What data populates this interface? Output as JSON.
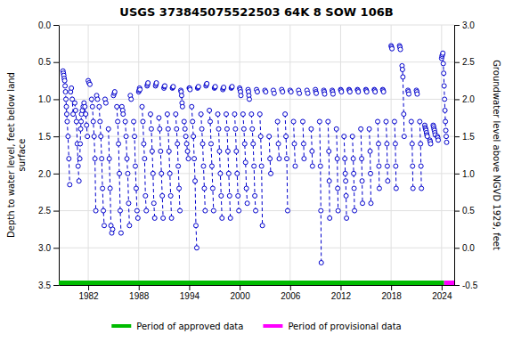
{
  "chart_data": {
    "type": "line",
    "title": "USGS 373845075522503 64K  8 SOW 106B",
    "ylabel": "Depth to water level, feet below land\nsurface",
    "y2label": "Groundwater level above NGVD 1929, feet",
    "xlim": [
      1978.5,
      2025.5
    ],
    "xticks": [
      1982,
      1988,
      1994,
      2000,
      2006,
      2012,
      2018,
      2024
    ],
    "ylim": [
      3.5,
      0.0
    ],
    "yticks": [
      {
        "value": 0.0,
        "label": "0.0"
      },
      0.5,
      {
        "value": 1.0,
        "label": "1.0"
      },
      1.5,
      {
        "value": 2.0,
        "label": "2.0"
      },
      2.5,
      {
        "value": 3.0,
        "label": "3.0"
      },
      3.5
    ],
    "y2lim": [
      -0.5,
      3.0
    ],
    "y2ticks": [
      -0.5,
      {
        "value": 0.0,
        "label": "0.0"
      },
      0.5,
      {
        "value": 1.0,
        "label": "1.0"
      },
      1.5,
      {
        "value": 2.0,
        "label": "2.0"
      },
      2.5,
      {
        "value": 3.0,
        "label": "3.0"
      }
    ],
    "grid": true,
    "legend": "bottom",
    "periods": [
      {
        "name": "Period of approved data",
        "color": "#00BB00",
        "x": [
          1978.5,
          2024.3
        ]
      },
      {
        "name": "Period of provisional data",
        "color": "#FF00FF",
        "x": [
          2024.3,
          2025.5
        ]
      }
    ],
    "x": [
      1979.0,
      1979.05,
      1979.1,
      1979.15,
      1979.2,
      1979.25,
      1979.3,
      1979.35,
      1979.4,
      1979.45,
      1979.5,
      1979.6,
      1979.7,
      1979.8,
      null,
      1979.9,
      1980.0,
      1980.1,
      1980.2,
      null,
      1980.4,
      1980.5,
      1980.6,
      1980.7,
      1980.8,
      1980.9,
      null,
      1981.0,
      1981.05,
      1981.1,
      1981.15,
      1981.2,
      1981.3,
      1981.4,
      1981.5,
      1981.6,
      1981.7,
      1981.8,
      1981.9,
      null,
      1982.0,
      1982.1,
      1982.2,
      null,
      1982.4,
      1982.5,
      1982.6,
      1982.7,
      1982.8,
      1982.9,
      null,
      1983.0,
      1983.1,
      null,
      1983.3,
      1983.4,
      1983.5,
      1983.6,
      1983.7,
      1983.8,
      1983.9,
      null,
      1984.0,
      1984.1,
      null,
      1984.4,
      1984.5,
      1984.6,
      1984.7,
      1984.8,
      1984.9,
      null,
      1985.0,
      1985.1,
      1985.15,
      null,
      1985.4,
      1985.5,
      1985.6,
      1985.7,
      1985.8,
      1985.9,
      null,
      1986.0,
      1986.1,
      1986.15,
      null,
      1986.4,
      1986.5,
      1986.6,
      1986.7,
      1986.8,
      1986.9,
      null,
      1987.0,
      1987.1,
      null,
      1987.4,
      1987.5,
      1987.6,
      1987.7,
      1987.8,
      1987.9,
      null,
      1988.0,
      1988.05,
      1988.1,
      1988.15,
      null,
      1988.4,
      1988.5,
      1988.6,
      1988.7,
      1988.8,
      1988.9,
      null,
      1989.0,
      1989.05,
      1989.1,
      null,
      1989.4,
      1989.5,
      1989.6,
      1989.7,
      1989.8,
      1989.9,
      null,
      1990.0,
      1990.05,
      1990.1,
      null,
      1990.4,
      1990.5,
      1990.6,
      1990.7,
      1990.8,
      1990.9,
      null,
      1991.0,
      1991.05,
      1991.1,
      null,
      1991.4,
      1991.5,
      1991.6,
      1991.7,
      1991.8,
      1991.9,
      null,
      1992.0,
      1992.05,
      1992.1,
      null,
      1992.4,
      1992.5,
      1992.6,
      1992.7,
      1992.8,
      1992.9,
      null,
      1993.0,
      1993.05,
      1993.1,
      1993.15,
      1993.2,
      null,
      1993.4,
      1993.5,
      1993.6,
      1993.7,
      1993.8,
      1993.9,
      null,
      1994.0,
      1994.05,
      1994.1,
      null,
      1994.3,
      1994.4,
      1994.5,
      1994.6,
      1994.7,
      1994.8,
      1994.9,
      null,
      1995.0,
      1995.05,
      1995.1,
      null,
      1995.4,
      1995.5,
      1995.6,
      1995.7,
      1995.8,
      1995.9,
      null,
      1996.0,
      1996.05,
      1996.1,
      null,
      1996.4,
      1996.5,
      1996.6,
      1996.7,
      1996.8,
      1996.9,
      null,
      1997.0,
      1997.05,
      1997.1,
      null,
      1997.4,
      1997.5,
      1997.6,
      1997.7,
      1997.8,
      1997.9,
      null,
      1998.0,
      1998.05,
      1998.1,
      null,
      1998.4,
      1998.5,
      1998.6,
      1998.7,
      1998.8,
      1998.9,
      null,
      1999.0,
      1999.05,
      1999.1,
      null,
      1999.4,
      1999.5,
      1999.6,
      1999.7,
      1999.8,
      1999.9,
      null,
      2000.0,
      2000.05,
      2000.1,
      2000.15,
      null,
      2000.4,
      2000.5,
      2000.6,
      2000.7,
      2000.8,
      2000.9,
      null,
      2001.0,
      2001.05,
      2001.1,
      2001.15,
      null,
      2001.4,
      2001.5,
      2001.6,
      2001.7,
      2001.8,
      2001.9,
      null,
      2002.0,
      2002.1,
      null,
      2002.4,
      2002.5,
      2002.6,
      2002.7,
      null,
      2003.0,
      2003.1,
      null,
      2003.5,
      2003.6,
      2003.7,
      null,
      2004.0,
      2004.1,
      null,
      2004.5,
      2004.6,
      2004.7,
      null,
      2005.0,
      2005.1,
      null,
      2005.4,
      2005.5,
      2005.6,
      2005.7,
      null,
      2006.0,
      2006.1,
      null,
      2006.4,
      2006.5,
      2006.6,
      null,
      2007.0,
      2007.1,
      null,
      2007.5,
      2007.6,
      2007.65,
      null,
      2008.0,
      2008.1,
      null,
      2008.5,
      2008.6,
      2008.65,
      null,
      2009.0,
      2009.05,
      2009.1,
      null,
      2009.5,
      2009.6,
      2009.65,
      2009.7,
      null,
      2010.0,
      2010.05,
      2010.1,
      null,
      2010.5,
      2010.6,
      2010.65,
      2010.7,
      null,
      2011.0,
      2011.05,
      2011.1,
      null,
      2011.5,
      2011.6,
      2011.65,
      2011.7,
      null,
      2012.0,
      2012.05,
      2012.1,
      null,
      2012.4,
      2012.5,
      2012.55,
      2012.6,
      2012.65,
      2012.7,
      null,
      2013.0,
      2013.05,
      2013.1,
      null,
      2013.4,
      2013.5,
      2013.55,
      2013.6,
      2013.65,
      null,
      2014.0,
      2014.05,
      2014.1,
      null,
      2014.4,
      2014.5,
      2014.55,
      2014.6,
      null,
      2015.0,
      2015.05,
      2015.1,
      null,
      2015.4,
      2015.5,
      2015.55,
      2015.6,
      null,
      2016.0,
      2016.05,
      2016.1,
      null,
      2016.4,
      2016.5,
      2016.55,
      2016.6,
      null,
      2017.0,
      2017.05,
      2017.1,
      null,
      2017.4,
      2017.5,
      2017.55,
      2017.6,
      null,
      2018.0,
      2018.05,
      2018.1,
      null,
      2018.4,
      2018.5,
      2018.55,
      2018.6,
      null,
      2019.0,
      2019.05,
      2019.1,
      null,
      2019.3,
      2019.35,
      2019.4,
      2019.5,
      2019.55,
      null,
      2020.0,
      2020.05,
      2020.1,
      null,
      2020.4,
      2020.5,
      2020.55,
      2020.6,
      null,
      2021.0,
      2021.05,
      2021.1,
      null,
      2021.4,
      2021.5,
      2021.55,
      2021.6,
      null,
      2022.0,
      2022.05,
      2022.1,
      2022.15,
      2022.2,
      2022.25,
      2022.3,
      null,
      2022.6,
      2022.65,
      2022.7,
      null,
      2023.0,
      2023.05,
      2023.1,
      2023.15,
      2023.2,
      2023.25,
      null,
      2023.5,
      2023.55,
      2023.6,
      null,
      2024.0,
      2024.05,
      2024.1,
      2024.15,
      2024.2,
      2024.25,
      2024.3,
      2024.35,
      2024.4,
      2024.45,
      2024.5,
      2024.55,
      2024.6
    ],
    "series": [
      {
        "color": "#0000CC",
        "line_style": "dashed",
        "marker": "circle",
        "values": [
          0.62,
          0.65,
          0.68,
          0.72,
          0.75,
          0.82,
          0.9,
          1.0,
          1.1,
          1.2,
          1.3,
          1.5,
          1.8,
          2.15,
          null,
          0.9,
          0.85,
          1.0,
          1.2,
          null,
          1.05,
          1.15,
          1.3,
          1.6,
          1.9,
          2.1,
          null,
          1.8,
          1.6,
          1.4,
          1.3,
          1.2,
          1.15,
          1.1,
          1.05,
          1.1,
          1.2,
          1.35,
          1.5,
          null,
          0.75,
          0.78,
          0.8,
          null,
          1.0,
          1.1,
          1.3,
          1.5,
          1.8,
          2.5,
          null,
          0.95,
          1.0,
          null,
          1.1,
          1.3,
          1.5,
          1.8,
          2.2,
          2.5,
          2.7,
          null,
          1.0,
          1.05,
          null,
          1.4,
          1.8,
          2.2,
          2.7,
          2.8,
          2.75,
          null,
          0.95,
          0.92,
          0.9,
          null,
          1.1,
          1.3,
          1.6,
          2.0,
          2.5,
          2.8,
          null,
          1.1,
          1.15,
          1.2,
          null,
          1.3,
          1.5,
          1.8,
          2.0,
          2.4,
          2.7,
          null,
          0.95,
          1.0,
          null,
          1.3,
          1.5,
          1.9,
          2.2,
          2.5,
          2.6,
          null,
          0.9,
          0.88,
          0.85,
          0.87,
          null,
          1.1,
          1.3,
          1.6,
          1.8,
          2.3,
          2.5,
          null,
          0.82,
          0.8,
          0.78,
          null,
          1.2,
          1.4,
          1.7,
          2.0,
          2.4,
          2.6,
          null,
          0.82,
          0.8,
          0.78,
          null,
          1.25,
          1.4,
          1.7,
          2.0,
          2.3,
          2.6,
          null,
          0.85,
          0.83,
          0.82,
          null,
          1.2,
          1.4,
          1.7,
          2.0,
          2.3,
          2.6,
          null,
          0.85,
          0.84,
          0.83,
          null,
          1.2,
          1.4,
          1.6,
          1.9,
          2.2,
          2.5,
          null,
          0.88,
          0.9,
          0.95,
          1.05,
          1.1,
          null,
          1.3,
          1.4,
          1.5,
          1.6,
          1.7,
          1.8,
          null,
          0.85,
          0.85,
          0.87,
          null,
          1.1,
          1.3,
          1.5,
          1.8,
          2.1,
          2.7,
          3.0,
          null,
          0.85,
          0.84,
          0.83,
          null,
          1.2,
          1.4,
          1.6,
          1.9,
          2.2,
          2.5,
          null,
          0.82,
          0.8,
          0.79,
          null,
          1.15,
          1.3,
          1.6,
          1.9,
          2.2,
          2.5,
          null,
          0.85,
          0.84,
          0.83,
          null,
          1.2,
          1.4,
          1.7,
          2.0,
          2.3,
          2.6,
          null,
          0.87,
          0.85,
          0.84,
          null,
          1.2,
          1.4,
          1.7,
          2.0,
          2.3,
          2.6,
          null,
          0.85,
          0.84,
          0.83,
          null,
          1.2,
          1.4,
          1.7,
          2.0,
          2.3,
          2.5,
          null,
          0.85,
          0.87,
          0.9,
          0.95,
          null,
          1.2,
          1.4,
          1.6,
          1.85,
          2.2,
          2.4,
          null,
          0.87,
          0.9,
          0.95,
          1.0,
          null,
          1.2,
          1.4,
          1.6,
          1.9,
          2.3,
          2.5,
          null,
          0.87,
          0.9,
          null,
          1.2,
          1.5,
          1.9,
          2.7,
          null,
          0.88,
          0.9,
          null,
          1.5,
          1.8,
          2.0,
          null,
          0.88,
          0.92,
          null,
          1.3,
          1.6,
          1.8,
          null,
          0.87,
          0.9,
          null,
          1.2,
          1.5,
          1.8,
          2.5,
          null,
          0.88,
          0.9,
          null,
          1.3,
          1.6,
          1.9,
          null,
          0.88,
          0.92,
          null,
          1.3,
          1.6,
          1.8,
          null,
          0.88,
          0.92,
          null,
          1.4,
          1.7,
          1.9,
          null,
          0.87,
          0.9,
          0.92,
          null,
          1.3,
          1.9,
          2.5,
          3.2,
          null,
          0.88,
          0.9,
          0.93,
          null,
          1.3,
          1.7,
          2.1,
          2.6,
          null,
          0.88,
          0.9,
          0.93,
          null,
          1.4,
          1.8,
          2.2,
          2.5,
          null,
          0.87,
          0.88,
          0.9,
          null,
          1.5,
          1.8,
          2.0,
          2.1,
          2.3,
          2.6,
          null,
          0.87,
          0.88,
          0.9,
          null,
          1.5,
          1.8,
          2.0,
          2.2,
          2.5,
          null,
          0.87,
          0.88,
          0.9,
          null,
          1.4,
          1.8,
          2.1,
          2.4,
          null,
          0.87,
          0.88,
          0.9,
          null,
          1.4,
          1.7,
          2.0,
          2.4,
          null,
          0.87,
          0.88,
          0.9,
          null,
          1.3,
          1.6,
          1.9,
          2.2,
          null,
          0.87,
          0.88,
          0.9,
          null,
          1.3,
          1.6,
          1.9,
          2.1,
          null,
          0.28,
          0.3,
          0.32,
          null,
          1.3,
          1.6,
          1.9,
          2.2,
          null,
          0.28,
          0.3,
          0.33,
          null,
          0.55,
          0.6,
          0.7,
          1.2,
          1.5,
          null,
          0.88,
          0.9,
          0.93,
          null,
          1.3,
          1.6,
          1.9,
          2.2,
          null,
          0.88,
          0.9,
          0.93,
          null,
          1.3,
          1.6,
          1.9,
          2.2,
          null,
          1.35,
          1.38,
          1.4,
          1.42,
          1.45,
          1.48,
          1.5,
          null,
          1.55,
          1.57,
          1.6,
          null,
          1.35,
          1.37,
          1.4,
          1.42,
          1.45,
          1.48,
          null,
          1.5,
          1.52,
          1.55,
          null,
          0.45,
          0.42,
          0.4,
          0.38,
          0.52,
          0.65,
          0.82,
          1.0,
          1.15,
          1.3,
          1.42,
          1.5,
          1.58
        ]
      }
    ]
  }
}
